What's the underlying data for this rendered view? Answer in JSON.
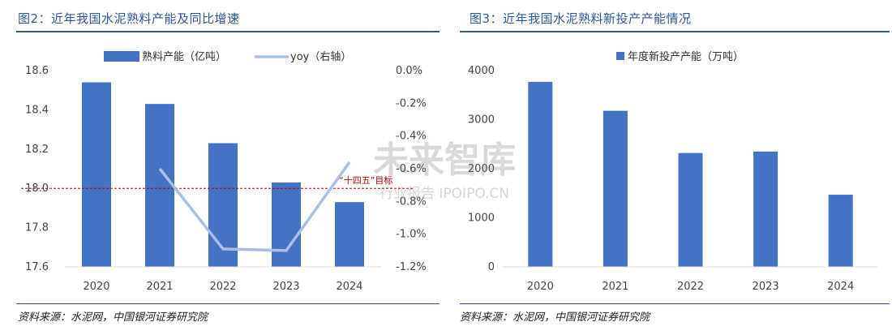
{
  "left": {
    "title": "图2：近年我国水泥熟料产能及同比增速",
    "source": "资料来源：水泥网，中国银河证券研究院",
    "chart_data": {
      "type": "bar",
      "categories": [
        "2020",
        "2021",
        "2022",
        "2023",
        "2024"
      ],
      "series": [
        {
          "name": "熟料产能（亿吨）",
          "type": "bar",
          "axis": "left",
          "values": [
            18.54,
            18.43,
            18.23,
            18.03,
            17.93
          ],
          "color": "#4472c4"
        },
        {
          "name": "yoy（右轴）",
          "type": "line",
          "axis": "right",
          "values": [
            null,
            -0.6,
            -1.09,
            -1.1,
            -0.56
          ],
          "color": "#a9c0e4"
        }
      ],
      "ylim": [
        17.6,
        18.6
      ],
      "yticks": [
        "17.6",
        "17.8",
        "18.0",
        "18.2",
        "18.4",
        "18.6"
      ],
      "y2lim": [
        -1.2,
        0.0
      ],
      "y2ticks": [
        "-1.2%",
        "-1.0%",
        "-0.8%",
        "-0.6%",
        "-0.4%",
        "-0.2%",
        "0.0%"
      ],
      "reference_line": {
        "value": 18.0,
        "label": "“十四五”目标",
        "color": "#c00000"
      },
      "legend_position": "top"
    }
  },
  "right": {
    "title": "图3：近年我国水泥熟料新投产产能情况",
    "source": "资料来源：水泥网，中国银河证券研究院",
    "chart_data": {
      "type": "bar",
      "categories": [
        "2020",
        "2021",
        "2022",
        "2023",
        "2024"
      ],
      "series": [
        {
          "name": "年度新投产产能（万吨）",
          "values": [
            3770,
            3180,
            2320,
            2350,
            1470
          ],
          "color": "#4472c4"
        }
      ],
      "ylim": [
        0,
        4000
      ],
      "yticks": [
        "0",
        "1000",
        "2000",
        "3000",
        "4000"
      ],
      "legend_position": "top"
    }
  },
  "watermark": {
    "main": "未来智库",
    "sub": "行业报告 IPOIPO.CN"
  }
}
